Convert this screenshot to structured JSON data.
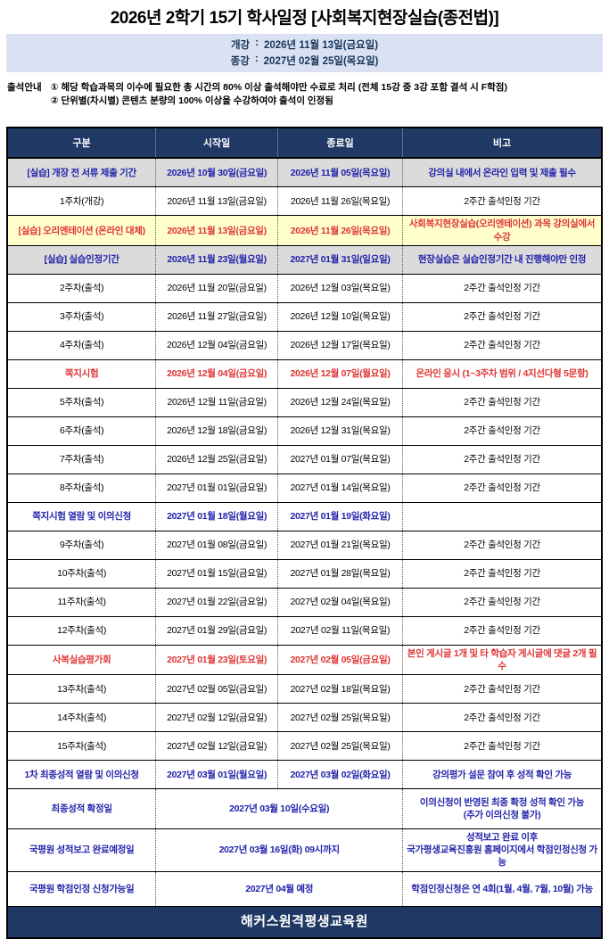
{
  "title": "2026년 2학기 15기 학사일정 [사회복지현장실습(종전법)]",
  "info_box": {
    "bg_color": "#D9E1F2",
    "rows": [
      {
        "label": "개강",
        "separator": ":",
        "value": "2026년 11월 13일(금요일)"
      },
      {
        "label": "종강",
        "separator": ":",
        "value": "2027년 02월 25일(목요일)"
      }
    ]
  },
  "notice": {
    "label": "출석안내",
    "lines": [
      "① 해당 학습과목의 이수에 필요한 총 시간의 80% 이상 출석해야만 수료로 처리 (전체 15강 중 3강 포함 결석 시 F학점)",
      "② 단위별(차시별) 콘텐츠 분량의 100% 이상을 수강하여야 출석이 인정됨"
    ]
  },
  "colors": {
    "header_navy": "#1F3864",
    "gray_row": "#DBDBDB",
    "yellow_row": "#FFFFCC",
    "blue_text": "#2323AB",
    "red_text": "#E03434"
  },
  "table": {
    "headers": [
      "구분",
      "시작일",
      "종료일",
      "비고"
    ],
    "rows": [
      {
        "category": "[실습] 개장 전 서류 제출 기간",
        "start": "2026년 10월 30일(금요일)",
        "end": "2026년 11월 05일(목요일)",
        "note": "강의실 내에서 온라인 입력 및 제출 필수",
        "style": "gray",
        "merged": false
      },
      {
        "category": "1주차(개강)",
        "start": "2026년 11월 13일(금요일)",
        "end": "2026년 11월 26일(목요일)",
        "note": "2주간 출석인정 기간",
        "style": "normal",
        "merged": false
      },
      {
        "category": "[실습] 오리엔테이션 (온라인 대체)",
        "start": "2026년 11월 13일(금요일)",
        "end": "2026년 11월 26일(목요일)",
        "note": "사회복지현장실습(오리엔테이션) 과목 강의실에서 수강",
        "style": "yellow",
        "merged": false
      },
      {
        "category": "[실습] 실습인정기간",
        "start": "2026년 11월 23일(월요일)",
        "end": "2027년 01월 31일(일요일)",
        "note": "현장실습은 실습인정기간 내 진행해야만 인정",
        "style": "gray",
        "merged": false
      },
      {
        "category": "2주차(출석)",
        "start": "2026년 11월 20일(금요일)",
        "end": "2026년 12월 03일(목요일)",
        "note": "2주간 출석인정 기간",
        "style": "normal",
        "merged": false
      },
      {
        "category": "3주차(출석)",
        "start": "2026년 11월 27일(금요일)",
        "end": "2026년 12월 10일(목요일)",
        "note": "2주간 출석인정 기간",
        "style": "normal",
        "merged": false
      },
      {
        "category": "4주차(출석)",
        "start": "2026년 12월 04일(금요일)",
        "end": "2026년 12월 17일(목요일)",
        "note": "2주간 출석인정 기간",
        "style": "normal",
        "merged": false
      },
      {
        "category": "쪽지시험",
        "start": "2026년 12월 04일(금요일)",
        "end": "2026년 12월 07일(월요일)",
        "note": "온라인 응시 (1~3주차 범위 / 4지선다형 5문항)",
        "style": "red",
        "merged": false
      },
      {
        "category": "5주차(출석)",
        "start": "2026년 12월 11일(금요일)",
        "end": "2026년 12월 24일(목요일)",
        "note": "2주간 출석인정 기간",
        "style": "normal",
        "merged": false
      },
      {
        "category": "6주차(출석)",
        "start": "2026년 12월 18일(금요일)",
        "end": "2026년 12월 31일(목요일)",
        "note": "2주간 출석인정 기간",
        "style": "normal",
        "merged": false
      },
      {
        "category": "7주차(출석)",
        "start": "2026년 12월 25일(금요일)",
        "end": "2027년 01월 07일(목요일)",
        "note": "2주간 출석인정 기간",
        "style": "normal",
        "merged": false
      },
      {
        "category": "8주차(출석)",
        "start": "2027년 01월 01일(금요일)",
        "end": "2027년 01월 14일(목요일)",
        "note": "2주간 출석인정 기간",
        "style": "normal",
        "merged": false
      },
      {
        "category": "쪽지시험 열람 및 이의신청",
        "start": "2027년 01월 18일(월요일)",
        "end": "2027년 01월 19일(화요일)",
        "note": "",
        "style": "blue",
        "merged": false
      },
      {
        "category": "9주차(출석)",
        "start": "2027년 01월 08일(금요일)",
        "end": "2027년 01월 21일(목요일)",
        "note": "2주간 출석인정 기간",
        "style": "normal",
        "merged": false
      },
      {
        "category": "10주차(출석)",
        "start": "2027년 01월 15일(금요일)",
        "end": "2027년 01월 28일(목요일)",
        "note": "2주간 출석인정 기간",
        "style": "normal",
        "merged": false
      },
      {
        "category": "11주차(출석)",
        "start": "2027년 01월 22일(금요일)",
        "end": "2027년 02월 04일(목요일)",
        "note": "2주간 출석인정 기간",
        "style": "normal",
        "merged": false
      },
      {
        "category": "12주차(출석)",
        "start": "2027년 01월 29일(금요일)",
        "end": "2027년 02월 11일(목요일)",
        "note": "2주간 출석인정 기간",
        "style": "normal",
        "merged": false
      },
      {
        "category": "사복실습평가회",
        "start": "2027년 01월 23일(토요일)",
        "end": "2027년 02월 05일(금요일)",
        "note": "본인 게시글 1개 및 타 학습자 게시글에 댓글 2개 필수",
        "style": "red",
        "merged": false
      },
      {
        "category": "13주차(출석)",
        "start": "2027년 02월 05일(금요일)",
        "end": "2027년 02월 18일(목요일)",
        "note": "2주간 출석인정 기간",
        "style": "normal",
        "merged": false
      },
      {
        "category": "14주차(출석)",
        "start": "2027년 02월 12일(금요일)",
        "end": "2027년 02월 25일(목요일)",
        "note": "2주간 출석인정 기간",
        "style": "normal",
        "merged": false
      },
      {
        "category": "15주차(출석)",
        "start": "2027년 02월 12일(금요일)",
        "end": "2027년 02월 25일(목요일)",
        "note": "2주간 출석인정 기간",
        "style": "normal",
        "merged": false
      },
      {
        "category": "1차 최종성적 열람 및 이의신청",
        "start": "2027년 03월 01일(월요일)",
        "end": "2027년 03월 02일(화요일)",
        "note": "강의평가 설문 참여 후 성적 확인 가능",
        "style": "blue",
        "merged": false
      },
      {
        "category": "최종성적 확정일",
        "date": "2027년 03월 10일(수요일)",
        "note": "이의신청이 반영된 최종 확정 성적 확인 가능\n(추가 이의신청 불가)",
        "style": "blue",
        "merged": true
      },
      {
        "category": "국평원 성적보고 완료예정일",
        "date": "2027년 03월 16일(화)  09시까지",
        "note": "성적보고 완료 이후\n국가평생교육진흥원 홈페이지에서 학점인정신청 가능",
        "style": "blue",
        "merged": true
      },
      {
        "category": "국평원 학점인정 신청가능일",
        "date": "2027년 04월 예정",
        "note": "학점인정신청은 연 4회(1월, 4월, 7월, 10월) 가능",
        "style": "blue",
        "merged": true
      }
    ]
  },
  "footer": {
    "text": "해커스원격평생교육원"
  }
}
